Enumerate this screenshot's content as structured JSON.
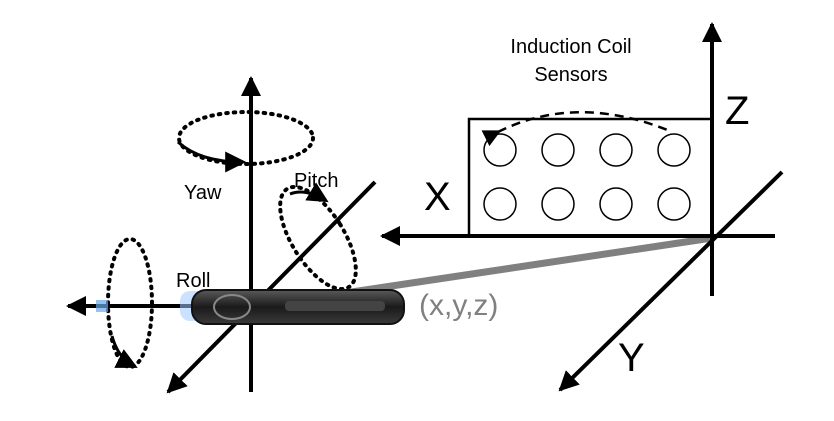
{
  "labels": {
    "title_line1": "Induction Coil",
    "title_line2": "Sensors",
    "axis_x": "X",
    "axis_y": "Y",
    "axis_z": "Z",
    "yaw": "Yaw",
    "pitch": "Pitch",
    "roll": "Roll",
    "position": "(x,y,z)"
  },
  "coil_array": {
    "rows": 2,
    "cols": 4
  },
  "colors": {
    "stroke": "#000000",
    "position_line": "#808080",
    "position_text": "#808080",
    "sensor_body": "#2a2a2a",
    "sensor_glow": "#9ec9ff"
  }
}
